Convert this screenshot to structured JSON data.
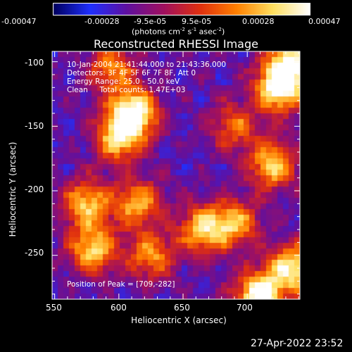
{
  "app": {
    "timestamp": "27-Apr-2022 23:52"
  },
  "colorbar": {
    "tick_labels": [
      "-0.00047",
      "-0.00028",
      "-9.5e-05",
      "9.5e-05",
      "0.00028",
      "0.00047"
    ],
    "range": [
      -0.00047,
      0.00047
    ],
    "units_line": "(photons cm",
    "units_exp1": "-2",
    "units_mid": " s",
    "units_exp2": "-1",
    "units_mid2": " asec",
    "units_exp3": "-2",
    "units_end": ")"
  },
  "chart_data": {
    "type": "heatmap",
    "title": "Reconstructed RHESSI Image",
    "xlabel": "Heliocentric X (arcsec)",
    "ylabel": "Heliocentric Y (arcsec)",
    "xlim": [
      548,
      741
    ],
    "ylim": [
      -284,
      -92
    ],
    "x_ticks": [
      "550",
      "600",
      "650",
      "700"
    ],
    "y_ticks": [
      "-100",
      "-150",
      "-200",
      "-250"
    ],
    "colormap": [
      "#000060",
      "#2030ff",
      "#6010a0",
      "#a01060",
      "#e03010",
      "#ff8000",
      "#ffe060",
      "#ffffff"
    ],
    "annotations": [
      "10-Jan-2004 21:41:44.000 to 21:43:36.000",
      "Detectors: 3F 4F 5F 6F 7F 8F, Att 0",
      "Energy Range: 25.0 - 50.0 keV",
      "Clean     Total counts: 1.47E+03"
    ],
    "peak_label": "Position of Peak = [709,-282]",
    "bright_regions": [
      {
        "x": 611,
        "y": -140,
        "level": 1.0
      },
      {
        "x": 725,
        "y": -120,
        "level": 1.0
      },
      {
        "x": 735,
        "y": -100,
        "level": 0.8
      },
      {
        "x": 720,
        "y": -180,
        "level": 0.75
      },
      {
        "x": 575,
        "y": -210,
        "level": 0.7
      },
      {
        "x": 615,
        "y": -210,
        "level": 0.65
      },
      {
        "x": 600,
        "y": -160,
        "level": 0.7
      },
      {
        "x": 665,
        "y": -230,
        "level": 0.7
      },
      {
        "x": 690,
        "y": -225,
        "level": 0.65
      },
      {
        "x": 580,
        "y": -245,
        "level": 0.75
      },
      {
        "x": 625,
        "y": -250,
        "level": 0.6
      },
      {
        "x": 735,
        "y": -260,
        "level": 0.85
      },
      {
        "x": 709,
        "y": -282,
        "level": 1.0
      },
      {
        "x": 595,
        "y": -105,
        "level": 0.55
      },
      {
        "x": 690,
        "y": -150,
        "level": 0.5
      }
    ]
  }
}
